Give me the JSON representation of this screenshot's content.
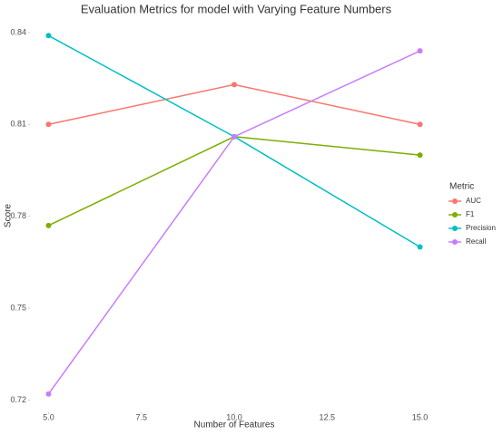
{
  "chart_data": {
    "type": "line",
    "title": "Evaluation Metrics for model with Varying Feature Numbers",
    "x_label": "Number of Features",
    "y_label": "Score",
    "x": [
      5,
      10,
      15
    ],
    "series": [
      {
        "name": "AUC",
        "color": "#F8766D",
        "values": [
          0.81,
          0.823,
          0.81
        ]
      },
      {
        "name": "F1",
        "color": "#7CAE00",
        "values": [
          0.777,
          0.806,
          0.8
        ]
      },
      {
        "name": "Precision",
        "color": "#00BFC4",
        "values": [
          0.839,
          0.806,
          0.77
        ]
      },
      {
        "name": "Recall",
        "color": "#C77CFF",
        "values": [
          0.722,
          0.806,
          0.834
        ]
      }
    ],
    "legend_title": "Metric",
    "legend": "right",
    "xlim": [
      4.5,
      15.5
    ],
    "xticks": [
      {
        "value": 5,
        "label": "5.0"
      },
      {
        "value": 7.5,
        "label": "7.5"
      },
      {
        "value": 10,
        "label": "10.0"
      },
      {
        "value": 12.5,
        "label": "12.5"
      },
      {
        "value": 15,
        "label": "15.0"
      }
    ],
    "ylim": [
      0.716,
      0.845
    ],
    "yticks": [
      0.72,
      0.75,
      0.78,
      0.81,
      0.84
    ],
    "grid": false
  }
}
